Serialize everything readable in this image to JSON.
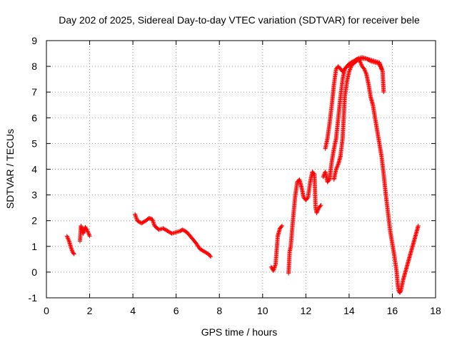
{
  "chart_data": {
    "type": "scatter",
    "title": "Day 202 of 2025, Sidereal Day-to-day VTEC variation (SDTVAR) for receiver bele",
    "xlabel": "GPS time / hours",
    "ylabel": "SDTVAR / TECUs",
    "xlim": [
      0,
      18
    ],
    "ylim": [
      -1,
      9
    ],
    "xticks": [
      "0",
      "2",
      "4",
      "6",
      "8",
      "10",
      "12",
      "14",
      "16",
      "18"
    ],
    "yticks": [
      "-1",
      "0",
      "1",
      "2",
      "3",
      "4",
      "5",
      "6",
      "7",
      "8",
      "9"
    ],
    "grid": true,
    "marker": "+",
    "series": [
      {
        "name": "SDTVAR",
        "color": "#ff0000",
        "segments": [
          [
            [
              0.95,
              1.4
            ],
            [
              1.05,
              1.2
            ],
            [
              1.12,
              1.0
            ],
            [
              1.2,
              0.8
            ],
            [
              1.28,
              0.7
            ]
          ],
          [
            [
              1.55,
              1.2
            ],
            [
              1.6,
              1.8
            ],
            [
              1.7,
              1.5
            ],
            [
              1.8,
              1.75
            ],
            [
              1.9,
              1.6
            ],
            [
              2.0,
              1.4
            ]
          ],
          [
            [
              4.1,
              2.25
            ],
            [
              4.2,
              2.0
            ],
            [
              4.4,
              1.9
            ],
            [
              4.6,
              2.0
            ],
            [
              4.75,
              2.1
            ],
            [
              4.9,
              2.05
            ],
            [
              5.0,
              1.8
            ],
            [
              5.2,
              1.65
            ],
            [
              5.4,
              1.7
            ],
            [
              5.6,
              1.6
            ],
            [
              5.8,
              1.5
            ],
            [
              6.0,
              1.55
            ],
            [
              6.2,
              1.6
            ],
            [
              6.3,
              1.65
            ],
            [
              6.5,
              1.55
            ],
            [
              6.7,
              1.35
            ],
            [
              6.9,
              1.15
            ],
            [
              7.1,
              0.9
            ],
            [
              7.3,
              0.8
            ],
            [
              7.5,
              0.7
            ],
            [
              7.6,
              0.6
            ]
          ],
          [
            [
              10.4,
              0.2
            ],
            [
              10.5,
              0.05
            ],
            [
              10.6,
              0.3
            ],
            [
              10.7,
              1.4
            ],
            [
              10.8,
              1.7
            ],
            [
              10.9,
              1.8
            ]
          ],
          [
            [
              11.2,
              -0.05
            ],
            [
              11.25,
              0.8
            ],
            [
              11.3,
              1.0
            ],
            [
              11.4,
              2.0
            ],
            [
              11.5,
              2.9
            ],
            [
              11.6,
              3.5
            ],
            [
              11.7,
              3.6
            ],
            [
              11.8,
              3.3
            ],
            [
              11.9,
              2.9
            ],
            [
              12.0,
              2.8
            ],
            [
              12.1,
              2.9
            ],
            [
              12.2,
              3.5
            ],
            [
              12.3,
              3.9
            ],
            [
              12.4,
              3.8
            ],
            [
              12.45,
              2.5
            ],
            [
              12.5,
              2.3
            ],
            [
              12.6,
              2.5
            ],
            [
              12.7,
              2.6
            ]
          ],
          [
            [
              12.8,
              3.7
            ],
            [
              12.9,
              3.9
            ],
            [
              13.0,
              3.5
            ],
            [
              13.1,
              3.6
            ],
            [
              13.15,
              4.0
            ],
            [
              13.2,
              4.3
            ],
            [
              13.3,
              4.8
            ],
            [
              13.4,
              5.2
            ],
            [
              13.5,
              6.0
            ],
            [
              13.6,
              6.8
            ],
            [
              13.7,
              7.5
            ],
            [
              13.8,
              7.9
            ],
            [
              13.9,
              8.0
            ],
            [
              14.0,
              8.05
            ],
            [
              14.2,
              8.1
            ],
            [
              14.4,
              8.25
            ],
            [
              14.6,
              8.3
            ],
            [
              14.7,
              8.3
            ],
            [
              14.8,
              8.3
            ],
            [
              15.0,
              8.25
            ],
            [
              15.2,
              8.2
            ],
            [
              15.4,
              8.15
            ],
            [
              15.55,
              7.8
            ],
            [
              15.6,
              7.0
            ]
          ],
          [
            [
              12.9,
              4.8
            ],
            [
              13.0,
              5.2
            ],
            [
              13.1,
              5.8
            ],
            [
              13.2,
              6.5
            ],
            [
              13.3,
              7.3
            ],
            [
              13.4,
              7.9
            ],
            [
              13.5,
              8.0
            ],
            [
              13.6,
              7.9
            ],
            [
              13.7,
              7.8
            ],
            [
              13.8,
              7.9
            ],
            [
              13.9,
              8.0
            ],
            [
              14.0,
              8.1
            ],
            [
              14.2,
              8.2
            ],
            [
              14.4,
              8.3
            ],
            [
              14.5,
              8.2
            ],
            [
              14.6,
              8.0
            ],
            [
              14.7,
              7.9
            ],
            [
              14.8,
              7.7
            ],
            [
              14.9,
              7.3
            ],
            [
              15.0,
              6.8
            ],
            [
              15.1,
              6.5
            ],
            [
              15.2,
              6.0
            ],
            [
              15.3,
              5.5
            ],
            [
              15.4,
              5.0
            ],
            [
              15.5,
              4.5
            ],
            [
              15.6,
              3.8
            ],
            [
              15.7,
              3.0
            ],
            [
              15.8,
              2.3
            ],
            [
              15.9,
              1.6
            ],
            [
              16.0,
              1.1
            ],
            [
              16.1,
              0.6
            ],
            [
              16.2,
              0.0
            ],
            [
              16.25,
              -0.5
            ],
            [
              16.3,
              -0.75
            ],
            [
              16.35,
              -0.8
            ],
            [
              16.4,
              -0.7
            ],
            [
              16.5,
              -0.3
            ],
            [
              16.6,
              0.0
            ],
            [
              16.7,
              0.3
            ],
            [
              16.8,
              0.6
            ],
            [
              16.9,
              0.9
            ],
            [
              17.0,
              1.2
            ],
            [
              17.1,
              1.5
            ],
            [
              17.2,
              1.8
            ]
          ],
          [
            [
              13.3,
              3.6
            ],
            [
              13.4,
              4.0
            ],
            [
              13.5,
              4.2
            ],
            [
              13.6,
              4.5
            ],
            [
              13.7,
              5.2
            ],
            [
              13.75,
              6.0
            ],
            [
              13.8,
              6.8
            ],
            [
              13.9,
              7.4
            ],
            [
              14.0,
              7.8
            ],
            [
              14.1,
              8.0
            ],
            [
              14.2,
              8.15
            ],
            [
              14.4,
              8.3
            ],
            [
              14.6,
              8.35
            ],
            [
              14.8,
              8.3
            ],
            [
              15.0,
              8.2
            ],
            [
              15.2,
              8.15
            ],
            [
              15.4,
              8.1
            ],
            [
              15.5,
              7.9
            ]
          ]
        ]
      }
    ]
  }
}
